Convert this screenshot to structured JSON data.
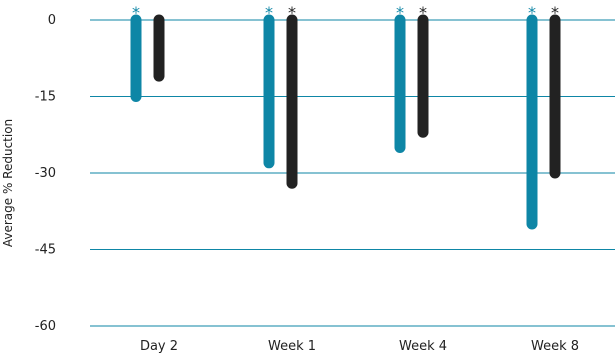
{
  "chart_data": {
    "type": "bar",
    "title": "",
    "xlabel": "",
    "ylabel": "Average % Reduction",
    "categories": [
      "Day 2",
      "Week 1",
      "Week 4",
      "Week 8"
    ],
    "ylim": [
      -60,
      0
    ],
    "yticks": [
      0,
      -15,
      -30,
      -45,
      -60
    ],
    "ytick_labels": [
      "0",
      "-15",
      "-30",
      "-45",
      "-60"
    ],
    "grid": "horizontal",
    "series": [
      {
        "color": "#0e86a6",
        "values": [
          -15,
          -28,
          -25,
          -40
        ],
        "significance": [
          "*",
          "*",
          "*",
          "*"
        ]
      },
      {
        "color": "#222222",
        "values": [
          -11,
          -32,
          -22,
          -30
        ],
        "significance": [
          "",
          "*",
          "*",
          "*"
        ]
      }
    ],
    "gridline_color": "#0e86a6"
  }
}
